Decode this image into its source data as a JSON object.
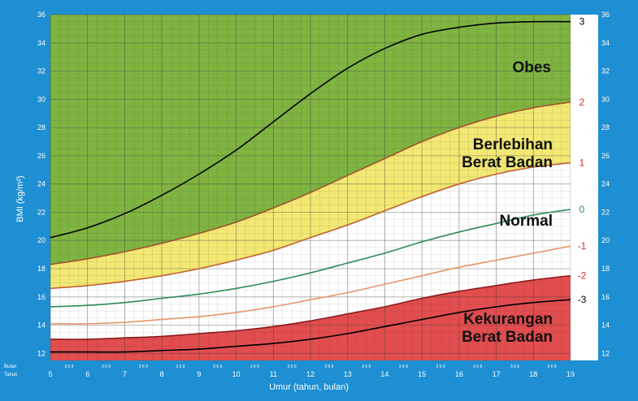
{
  "chart_data": {
    "type": "area",
    "title": "",
    "xlabel": "Umur (tahun, bulan)",
    "ylabel": "BMI (kg/m²)",
    "xlim": [
      5,
      19
    ],
    "ylim": [
      11.5,
      36
    ],
    "x_ticks": [
      5,
      6,
      7,
      8,
      9,
      10,
      11,
      12,
      13,
      14,
      15,
      16,
      17,
      18,
      19
    ],
    "y_ticks": [
      12,
      14,
      16,
      18,
      20,
      22,
      24,
      26,
      28,
      30,
      32,
      34,
      36
    ],
    "month_ticks": "3 6 9",
    "row_labels": {
      "months": "Bulan",
      "years": "Tahun"
    },
    "x": [
      5,
      6,
      7,
      8,
      9,
      10,
      11,
      12,
      13,
      14,
      15,
      16,
      17,
      18,
      19
    ],
    "series": [
      {
        "name": "3",
        "color": "#000000",
        "values": [
          20.2,
          20.9,
          21.9,
          23.2,
          24.7,
          26.4,
          28.4,
          30.4,
          32.2,
          33.6,
          34.6,
          35.1,
          35.4,
          35.5,
          35.5
        ]
      },
      {
        "name": "2",
        "color": "#a0522d",
        "values": [
          18.3,
          18.7,
          19.2,
          19.8,
          20.5,
          21.3,
          22.3,
          23.4,
          24.6,
          25.8,
          27.0,
          28.0,
          28.8,
          29.4,
          29.8
        ]
      },
      {
        "name": "1",
        "color": "#c06030",
        "values": [
          16.6,
          16.8,
          17.1,
          17.5,
          18.0,
          18.6,
          19.3,
          20.2,
          21.1,
          22.1,
          23.1,
          24.0,
          24.7,
          25.2,
          25.5
        ]
      },
      {
        "name": "0",
        "color": "#2e8b57",
        "values": [
          15.3,
          15.4,
          15.6,
          15.9,
          16.2,
          16.6,
          17.1,
          17.7,
          18.4,
          19.1,
          19.9,
          20.6,
          21.2,
          21.8,
          22.2
        ]
      },
      {
        "name": "-1",
        "color": "#e8956a",
        "values": [
          14.1,
          14.1,
          14.2,
          14.4,
          14.6,
          14.9,
          15.3,
          15.8,
          16.3,
          16.9,
          17.5,
          18.1,
          18.6,
          19.1,
          19.6
        ]
      },
      {
        "name": "-2",
        "color": "#8b1a1a",
        "values": [
          13.0,
          13.0,
          13.1,
          13.2,
          13.4,
          13.6,
          13.9,
          14.3,
          14.8,
          15.3,
          15.9,
          16.4,
          16.8,
          17.2,
          17.5
        ]
      },
      {
        "name": "-3",
        "color": "#000000",
        "values": [
          12.1,
          12.1,
          12.1,
          12.2,
          12.3,
          12.5,
          12.7,
          13.0,
          13.4,
          13.9,
          14.4,
          14.9,
          15.3,
          15.6,
          15.8
        ]
      }
    ],
    "zones": [
      {
        "label": "Obes",
        "between": [
          "2",
          "top"
        ],
        "color": "#7fb441"
      },
      {
        "label": "Berlebihan Berat Badan",
        "between": [
          "1",
          "2"
        ],
        "color": "#f3e873"
      },
      {
        "label": "Normal",
        "between": [
          "-2",
          "1"
        ],
        "color": "#ffffff"
      },
      {
        "label": "Kekurangan Berat Badan",
        "between": [
          "bottom",
          "-2"
        ],
        "color": "#e24d4f"
      }
    ],
    "zone_labels": {
      "obes": "Obes",
      "over_1": "Berlebihan",
      "over_2": "Berat Badan",
      "normal": "Normal",
      "under_1": "Kekurangan",
      "under_2": "Berat Badan"
    },
    "z_labels": [
      {
        "text": "3",
        "color": "#000000",
        "at": 35.5
      },
      {
        "text": "2",
        "color": "#d0312d",
        "at": 29.8
      },
      {
        "text": "1",
        "color": "#d0312d",
        "at": 25.5
      },
      {
        "text": "0",
        "color": "#2e8b57",
        "at": 22.2
      },
      {
        "text": "-1",
        "color": "#d0312d",
        "at": 19.6
      },
      {
        "text": "-2",
        "color": "#d0312d",
        "at": 17.5
      },
      {
        "text": "-3",
        "color": "#000000",
        "at": 15.8
      }
    ]
  }
}
